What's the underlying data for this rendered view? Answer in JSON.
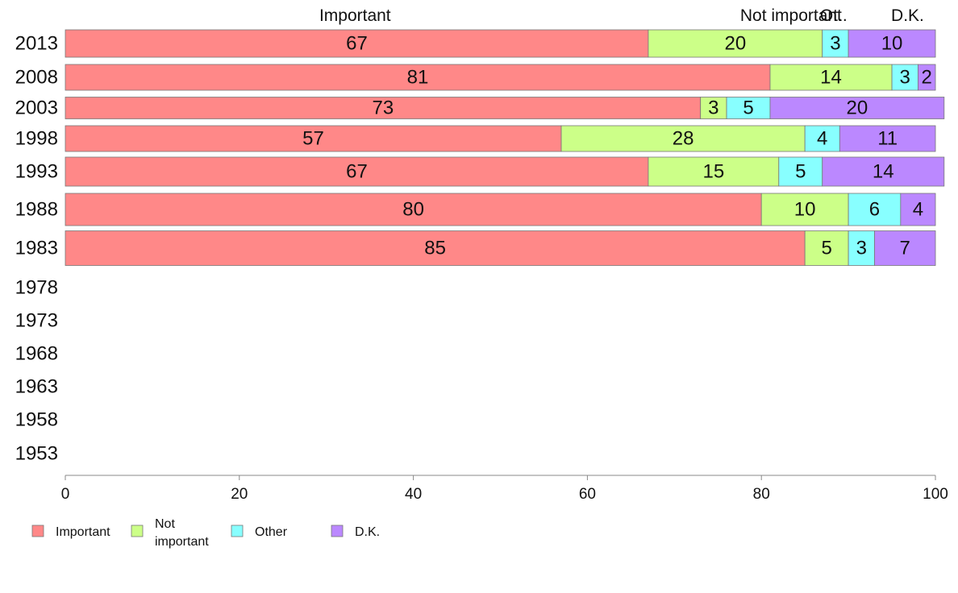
{
  "chart_data": {
    "type": "bar",
    "orientation": "horizontal",
    "stacked": true,
    "categories": [
      "2013",
      "2008",
      "2003",
      "1998",
      "1993",
      "1988",
      "1983",
      "1978",
      "1973",
      "1968",
      "1963",
      "1958",
      "1953"
    ],
    "series": [
      {
        "name": "Important",
        "color": "#ff8888",
        "values": [
          67,
          81,
          73,
          57,
          67,
          80,
          85,
          null,
          null,
          null,
          null,
          null,
          null
        ]
      },
      {
        "name": "Not important",
        "color": "#ccff88",
        "values": [
          20,
          14,
          3,
          28,
          15,
          10,
          5,
          null,
          null,
          null,
          null,
          null,
          null
        ]
      },
      {
        "name": "Other",
        "color": "#88ffff",
        "values": [
          3,
          3,
          5,
          4,
          5,
          6,
          3,
          null,
          null,
          null,
          null,
          null,
          null
        ]
      },
      {
        "name": "D.K.",
        "color": "#bb88ff",
        "values": [
          10,
          2,
          20,
          11,
          14,
          4,
          7,
          null,
          null,
          null,
          null,
          null,
          null
        ]
      }
    ],
    "column_headers": [
      "Important",
      "Not important",
      "Ot..",
      "D.K."
    ],
    "legend_labels": [
      "Important",
      "Not\nimportant",
      "Other",
      "D.K."
    ],
    "xlim": [
      0,
      100
    ],
    "xticks": [
      0,
      20,
      40,
      60,
      80,
      100
    ],
    "legend_position": "bottom-left",
    "grid": false
  }
}
